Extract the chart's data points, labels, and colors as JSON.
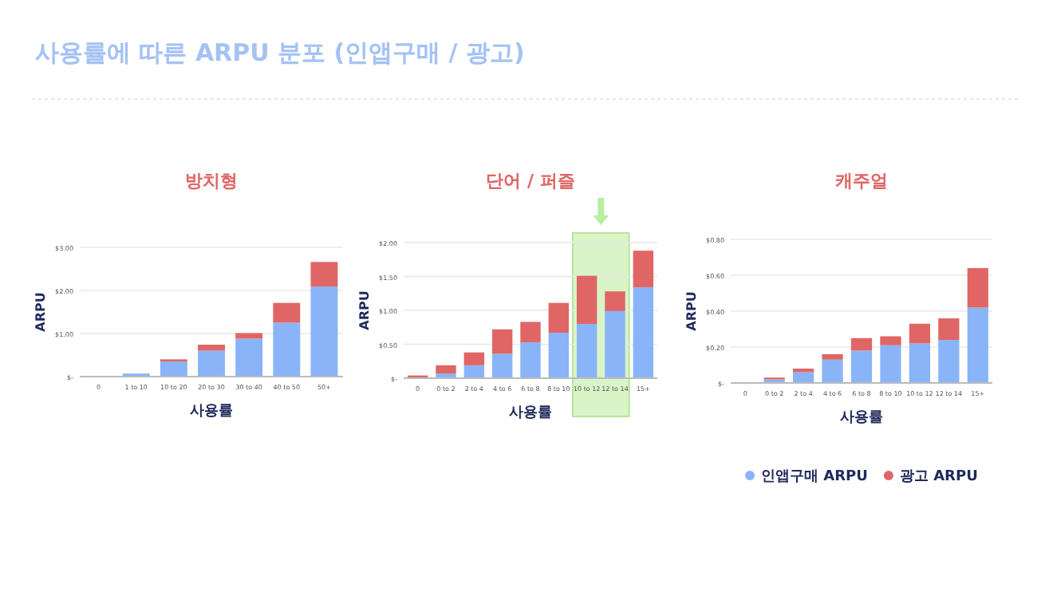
{
  "chart_data": [
    {
      "type": "bar",
      "stacked": true,
      "title": "방치형",
      "xlabel": "사용률",
      "ylabel": "ARPU",
      "annotations": [
        "사용률에 따른 ARPU 분포 (인앱구매 / 광고)"
      ],
      "categories": [
        "0",
        "1 to 10",
        "10 to 20",
        "20 to 30",
        "30 to 40",
        "40 to 50",
        "50+"
      ],
      "ylim": [
        0,
        3
      ],
      "yticks": [
        {
          "value": 0,
          "label": "$-"
        },
        {
          "value": 1,
          "label": "$1.00"
        },
        {
          "value": 2,
          "label": "$2.00"
        },
        {
          "value": 3,
          "label": "$3.00"
        }
      ],
      "grid": "y",
      "series": [
        {
          "color": "#8ab4f8",
          "values": [
            0.01,
            0.07,
            0.35,
            0.6,
            0.88,
            1.25,
            2.09
          ]
        },
        {
          "color": "#e06666",
          "values": [
            0,
            0,
            0.05,
            0.14,
            0.13,
            0.46,
            0.57
          ]
        }
      ]
    },
    {
      "type": "bar",
      "stacked": true,
      "title": "단어 / 퍼즐",
      "xlabel": "사용률",
      "ylabel": "ARPU",
      "categories": [
        "0",
        "0 to 2",
        "2 to 4",
        "4 to 6",
        "6 to 8",
        "8 to 10",
        "10 to 12",
        "12 to 14",
        "15+"
      ],
      "ylim": [
        0,
        2
      ],
      "yticks": [
        {
          "value": 0,
          "label": "$-"
        },
        {
          "value": 0.5,
          "label": "$0.50"
        },
        {
          "value": 1,
          "label": "$1.00"
        },
        {
          "value": 1.5,
          "label": "$1.50"
        },
        {
          "value": 2,
          "label": "$2.00"
        }
      ],
      "grid": "y",
      "bands": [
        {
          "axis": "x",
          "from": "10 to 12",
          "to": "12 to 14",
          "color": "#d9f5c8"
        }
      ],
      "series": [
        {
          "color": "#8ab4f8",
          "values": [
            0,
            0.07,
            0.19,
            0.36,
            0.53,
            0.67,
            0.8,
            0.99,
            1.34
          ]
        },
        {
          "color": "#e06666",
          "values": [
            0.04,
            0.12,
            0.19,
            0.36,
            0.3,
            0.44,
            0.71,
            0.29,
            0.54
          ]
        }
      ]
    },
    {
      "type": "bar",
      "stacked": true,
      "title": "캐주얼",
      "xlabel": "사용률",
      "ylabel": "ARPU",
      "legend": "bottom right",
      "categories": [
        "0",
        "0 to 2",
        "2 to 4",
        "4 to 6",
        "6 to 8",
        "8 to 10",
        "10 to 12",
        "12 to 14",
        "15+"
      ],
      "ylim": [
        0,
        0.8
      ],
      "yticks": [
        {
          "value": 0,
          "label": "$-"
        },
        {
          "value": 0.2,
          "label": "$0.20"
        },
        {
          "value": 0.4,
          "label": "$0.40"
        },
        {
          "value": 0.6,
          "label": "$0.60"
        },
        {
          "value": 0.8,
          "label": "$0.80"
        }
      ],
      "grid": "y",
      "series": [
        {
          "name": "인앱구매 ARPU",
          "color": "#8ab4f8",
          "values": [
            0,
            0.02,
            0.06,
            0.13,
            0.18,
            0.21,
            0.22,
            0.24,
            0.42
          ]
        },
        {
          "name": "광고 ARPU",
          "color": "#e06666",
          "values": [
            0,
            0.01,
            0.02,
            0.03,
            0.07,
            0.05,
            0.11,
            0.12,
            0.22
          ]
        }
      ]
    }
  ]
}
